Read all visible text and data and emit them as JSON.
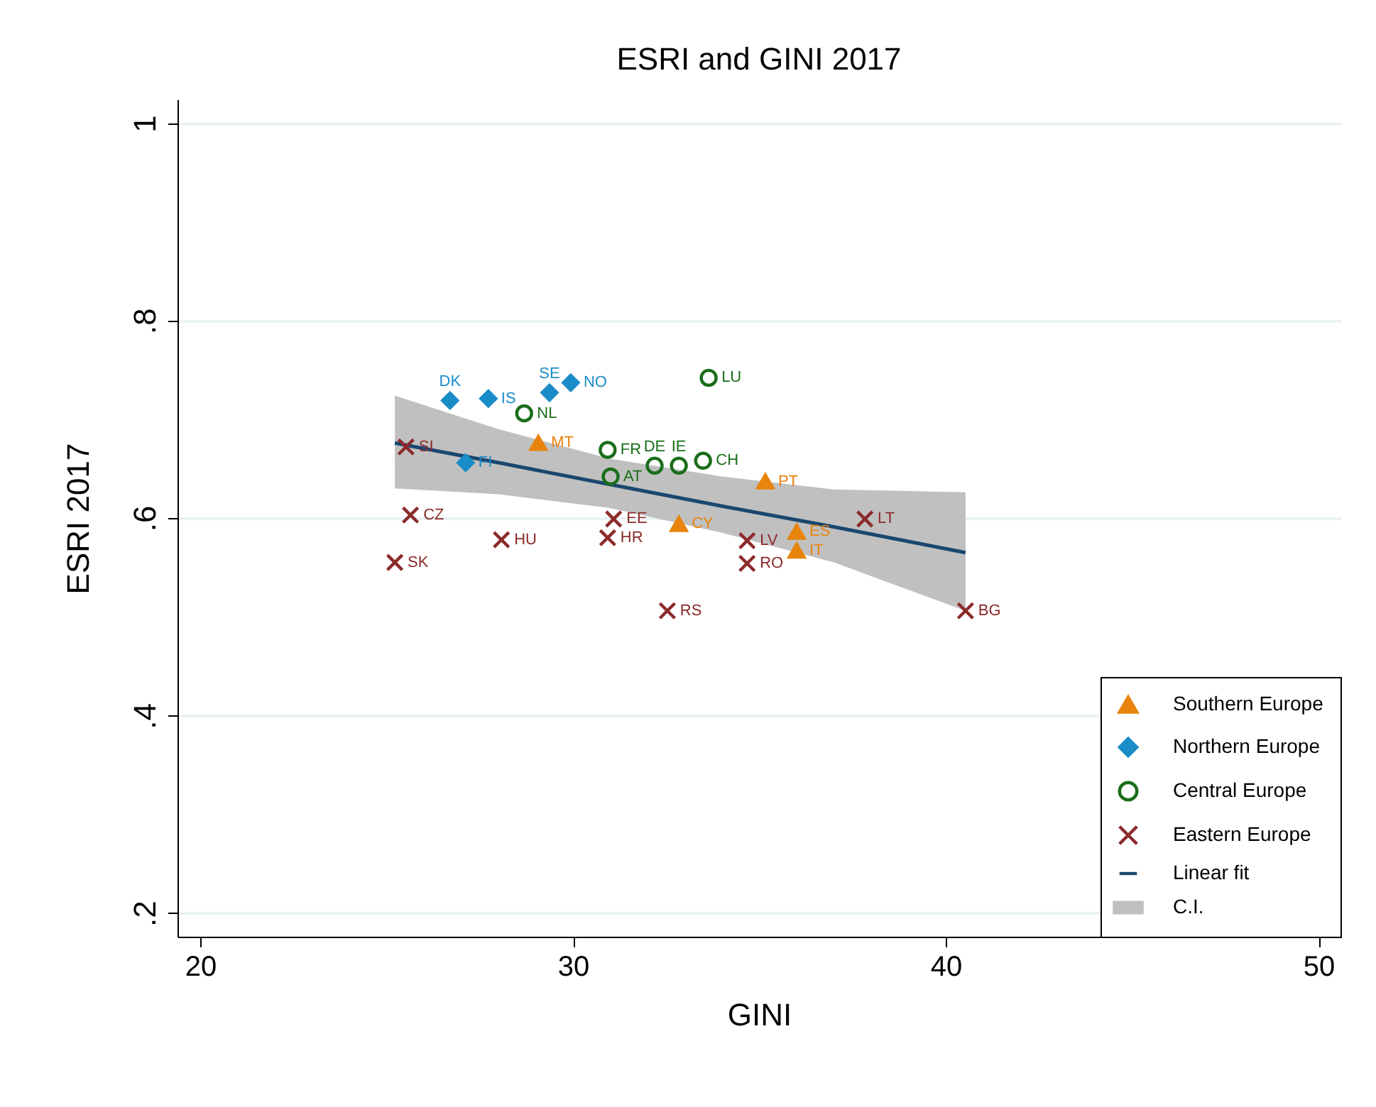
{
  "chart_data": {
    "type": "scatter",
    "title": "ESRI and GINI 2017",
    "xlabel": "GINI",
    "ylabel": "ESRI 2017",
    "xlim": [
      19.39,
      50.59
    ],
    "xticks": [
      20,
      30,
      40,
      50
    ],
    "ylim": [
      0.176,
      1.024
    ],
    "yticks": [
      {
        "value": 0.2,
        "label": ".2"
      },
      {
        "value": 0.4,
        "label": ".4"
      },
      {
        "value": 0.6,
        "label": ".6"
      },
      {
        "value": 0.8,
        "label": ".8"
      },
      {
        "value": 1,
        "label": "1"
      }
    ],
    "grid": "y",
    "legend": "bottom right",
    "series": [
      {
        "name": "Southern Europe",
        "type": "scatter",
        "marker": "triangle",
        "color": "#e8830c",
        "x": [
          29.07,
          35.16,
          32.84,
          36.0,
          36.0
        ],
        "values": [
          0.676,
          0.637,
          0.594,
          0.586,
          0.567
        ]
      },
      {
        "name": "Northern Europe",
        "type": "scatter",
        "marker": "diamond",
        "color": "#1a8cc8",
        "x": [
          26.7,
          27.73,
          29.37,
          29.94,
          27.12
        ],
        "values": [
          0.719,
          0.721,
          0.727,
          0.737,
          0.656
        ]
      },
      {
        "name": "Central Europe",
        "type": "scatter",
        "marker": "circle",
        "color": "#1a6e1a",
        "x": [
          33.64,
          28.69,
          30.93,
          31.01,
          32.19,
          32.84,
          33.49
        ],
        "values": [
          0.742,
          0.706,
          0.669,
          0.642,
          0.653,
          0.653,
          0.658
        ]
      },
      {
        "name": "Eastern Europe",
        "type": "scatter",
        "marker": "cross",
        "color": "#8b2a2a",
        "x": [
          25.52,
          25.64,
          25.22,
          28.08,
          31.09,
          30.93,
          32.53,
          34.67,
          34.67,
          37.83,
          40.53
        ],
        "values": [
          0.672,
          0.603,
          0.555,
          0.578,
          0.599,
          0.58,
          0.506,
          0.577,
          0.554,
          0.599,
          0.506
        ]
      },
      {
        "name": "Linear fit",
        "type": "line",
        "color": "#1a476f",
        "x": [
          25.22,
          28,
          31,
          34,
          37,
          40.53
        ],
        "values": [
          0.676,
          0.656,
          0.634,
          0.612,
          0.591,
          0.565
        ],
        "lower": [
          0.63,
          0.624,
          0.61,
          0.585,
          0.555,
          0.506
        ],
        "upper": [
          0.724,
          0.69,
          0.66,
          0.642,
          0.629,
          0.626
        ]
      }
    ],
    "annotations": [
      "C.I.",
      {
        "text": "MT",
        "x": 29.07,
        "y": 0.676
      },
      {
        "text": "PT",
        "x": 35.16,
        "y": 0.637
      },
      {
        "text": "CY",
        "x": 32.84,
        "y": 0.594
      },
      {
        "text": "ES",
        "x": 36.0,
        "y": 0.586
      },
      {
        "text": "IT",
        "x": 36.0,
        "y": 0.567
      },
      {
        "text": "DK",
        "x": 26.7,
        "y": 0.719
      },
      {
        "text": "IS",
        "x": 27.73,
        "y": 0.721
      },
      {
        "text": "SE",
        "x": 29.37,
        "y": 0.727
      },
      {
        "text": "NO",
        "x": 29.94,
        "y": 0.737
      },
      {
        "text": "FI",
        "x": 27.12,
        "y": 0.656
      },
      {
        "text": "LU",
        "x": 33.64,
        "y": 0.742
      },
      {
        "text": "NL",
        "x": 28.69,
        "y": 0.706
      },
      {
        "text": "FR",
        "x": 30.93,
        "y": 0.669
      },
      {
        "text": "AT",
        "x": 31.01,
        "y": 0.642
      },
      {
        "text": "DE",
        "x": 32.19,
        "y": 0.653
      },
      {
        "text": "IE",
        "x": 32.84,
        "y": 0.653
      },
      {
        "text": "CH",
        "x": 33.49,
        "y": 0.658
      },
      {
        "text": "SI",
        "x": 25.52,
        "y": 0.672
      },
      {
        "text": "CZ",
        "x": 25.64,
        "y": 0.603
      },
      {
        "text": "SK",
        "x": 25.22,
        "y": 0.555
      },
      {
        "text": "HU",
        "x": 28.08,
        "y": 0.578
      },
      {
        "text": "EE",
        "x": 31.09,
        "y": 0.599
      },
      {
        "text": "HR",
        "x": 30.93,
        "y": 0.58
      },
      {
        "text": "RS",
        "x": 32.53,
        "y": 0.506
      },
      {
        "text": "LV",
        "x": 34.67,
        "y": 0.577
      },
      {
        "text": "RO",
        "x": 34.67,
        "y": 0.554
      },
      {
        "text": "LT",
        "x": 37.83,
        "y": 0.599
      },
      {
        "text": "BG",
        "x": 40.53,
        "y": 0.506
      }
    ]
  }
}
